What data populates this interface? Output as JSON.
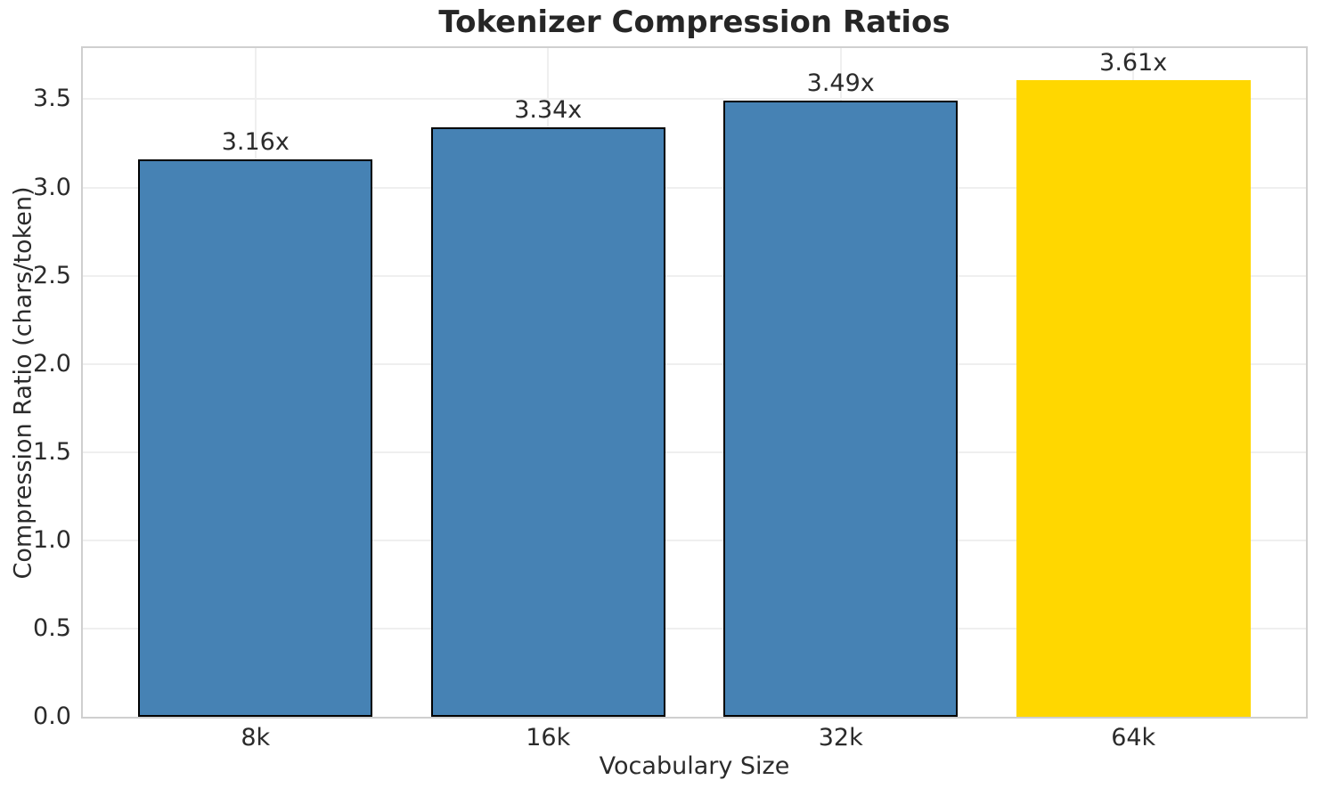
{
  "chart_data": {
    "type": "bar",
    "title": "Tokenizer Compression Ratios",
    "xlabel": "Vocabulary Size",
    "ylabel": "Compression Ratio (chars/token)",
    "categories": [
      "8k",
      "16k",
      "32k",
      "64k"
    ],
    "values": [
      3.16,
      3.34,
      3.49,
      3.61
    ],
    "value_labels": [
      "3.16x",
      "3.34x",
      "3.49x",
      "3.61x"
    ],
    "bar_colors": [
      "#4682b4",
      "#4682b4",
      "#4682b4",
      "#ffd700"
    ],
    "bar_edge_colors": [
      "#000000",
      "#000000",
      "#000000",
      "none"
    ],
    "highlight_color": "#ffd700",
    "base_color": "#4682b4",
    "ylim": [
      0,
      3.79
    ],
    "yticks": [
      0.0,
      0.5,
      1.0,
      1.5,
      2.0,
      2.5,
      3.0,
      3.5
    ],
    "ytick_labels": [
      "0.0",
      "0.5",
      "1.0",
      "1.5",
      "2.0",
      "2.5",
      "3.0",
      "3.5"
    ],
    "grid": true,
    "grid_axis": "both",
    "legend_position": "none"
  }
}
